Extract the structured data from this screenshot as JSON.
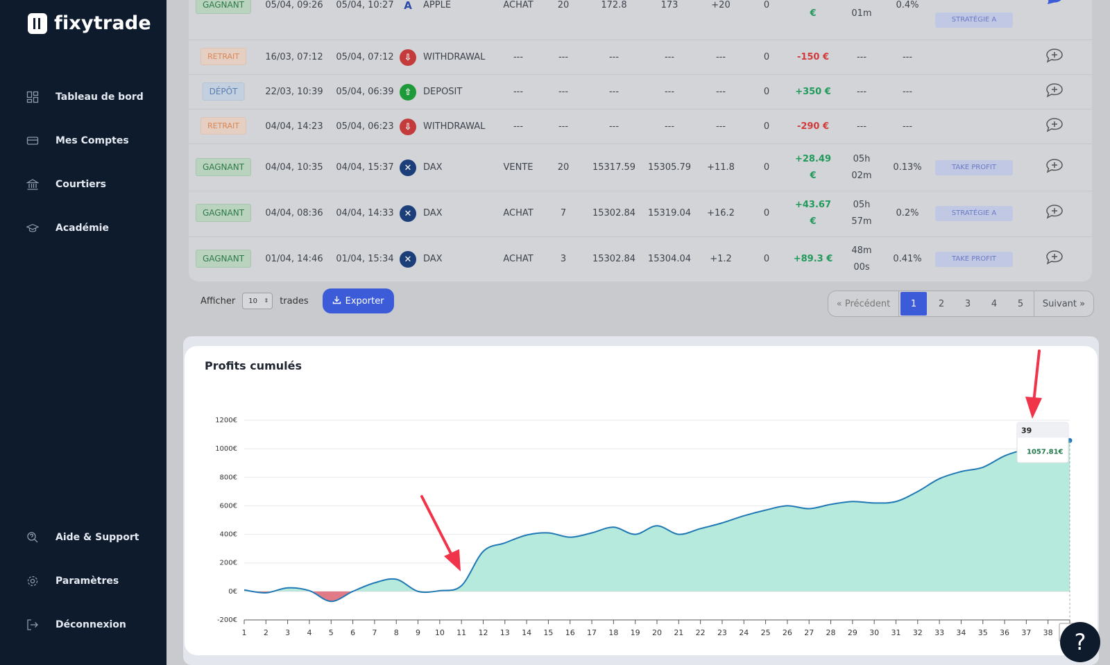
{
  "app": {
    "name": "fixytrade"
  },
  "sidebar": {
    "items": [
      {
        "label": "Tableau de bord",
        "icon": "dashboard-icon"
      },
      {
        "label": "Mes Comptes",
        "icon": "card-icon"
      },
      {
        "label": "Courtiers",
        "icon": "bank-icon"
      },
      {
        "label": "Académie",
        "icon": "graduation-cap-icon"
      }
    ],
    "bottom_items": [
      {
        "label": "Aide & Support",
        "icon": "support-icon"
      },
      {
        "label": "Paramètres",
        "icon": "gear-icon"
      },
      {
        "label": "Déconnexion",
        "icon": "logout-icon"
      }
    ]
  },
  "trades": {
    "rows": [
      {
        "status": "GAGNANT",
        "kind": "win",
        "open": "05/04, 09:26",
        "close": "05/04, 10:27",
        "symbol": "APPLE",
        "symbol_icon": "apple-letter-icon",
        "side": "ACHAT",
        "qty": "20",
        "entry": "172.8",
        "exit": "173",
        "points": "+20",
        "fees": "0",
        "pnl": "",
        "pnl2": "€",
        "pnl_color": "green",
        "dur1": "",
        "dur2": "01m",
        "pct": "0.4%",
        "strategy": "STRATÉGIE A"
      },
      {
        "status": "RETRAIT",
        "kind": "withdrawal",
        "open": "16/03, 07:12",
        "close": "05/04, 07:12",
        "symbol": "WITHDRAWAL",
        "symbol_icon": "withdrawal-icon",
        "side": "---",
        "qty": "---",
        "entry": "---",
        "exit": "---",
        "points": "---",
        "fees": "0",
        "pnl": "-150 €",
        "pnl_color": "red",
        "dur1": "---",
        "pct": "---",
        "strategy": ""
      },
      {
        "status": "DÉPÔT",
        "kind": "deposit",
        "open": "22/03, 10:39",
        "close": "05/04, 06:39",
        "symbol": "DEPOSIT",
        "symbol_icon": "deposit-icon",
        "side": "---",
        "qty": "---",
        "entry": "---",
        "exit": "---",
        "points": "---",
        "fees": "0",
        "pnl": "+350 €",
        "pnl_color": "green",
        "dur1": "---",
        "pct": "---",
        "strategy": ""
      },
      {
        "status": "RETRAIT",
        "kind": "withdrawal",
        "open": "04/04, 14:23",
        "close": "05/04, 06:23",
        "symbol": "WITHDRAWAL",
        "symbol_icon": "withdrawal-icon",
        "side": "---",
        "qty": "---",
        "entry": "---",
        "exit": "---",
        "points": "---",
        "fees": "0",
        "pnl": "-290 €",
        "pnl_color": "red",
        "dur1": "---",
        "pct": "---",
        "strategy": ""
      },
      {
        "status": "GAGNANT",
        "kind": "win",
        "open": "04/04, 10:35",
        "close": "04/04, 15:37",
        "symbol": "DAX",
        "symbol_icon": "dax-icon",
        "side": "VENTE",
        "qty": "20",
        "entry": "15317.59",
        "exit": "15305.79",
        "points": "+11.8",
        "fees": "0",
        "pnl": "+28.49",
        "pnl2": "€",
        "pnl_color": "green",
        "dur1": "05h",
        "dur2": "02m",
        "pct": "0.13%",
        "strategy": "TAKE PROFIT"
      },
      {
        "status": "GAGNANT",
        "kind": "win",
        "open": "04/04, 08:36",
        "close": "04/04, 14:33",
        "symbol": "DAX",
        "symbol_icon": "dax-icon",
        "side": "ACHAT",
        "qty": "7",
        "entry": "15302.84",
        "exit": "15319.04",
        "points": "+16.2",
        "fees": "0",
        "pnl": "+43.67",
        "pnl2": "€",
        "pnl_color": "green",
        "dur1": "05h",
        "dur2": "57m",
        "pct": "0.2%",
        "strategy": "STRATÉGIE A"
      },
      {
        "status": "GAGNANT",
        "kind": "win",
        "open": "01/04, 14:46",
        "close": "01/04, 15:34",
        "symbol": "DAX",
        "symbol_icon": "dax-icon",
        "side": "ACHAT",
        "qty": "3",
        "entry": "15302.84",
        "exit": "15304.04",
        "points": "+1.2",
        "fees": "0",
        "pnl": "+89.3 €",
        "pnl_color": "green",
        "dur1": "48m",
        "dur2": "00s",
        "pct": "0.41%",
        "strategy": "TAKE PROFIT"
      }
    ]
  },
  "controls": {
    "show_label": "Afficher",
    "page_size": "10",
    "trades_label": "trades",
    "export_label": "Exporter"
  },
  "pagination": {
    "prev": "« Précédent",
    "pages": [
      "1",
      "2",
      "3",
      "4",
      "5"
    ],
    "active": "1",
    "next": "Suivant »"
  },
  "chart": {
    "title": "Profits cumulés",
    "tooltip_label": "39",
    "tooltip_value": "1057.81€"
  },
  "help": {
    "label": "?"
  },
  "colors": {
    "sidebar": "#0e1b2c",
    "accent": "#3b5bd8",
    "line": "#1f78b4",
    "area_positive": "#b5eadc",
    "area_negative": "#e07a86",
    "tooltip_value": "#1f7a4a",
    "arrow": "#f0344a"
  },
  "chart_data": {
    "type": "area",
    "title": "Profits cumulés",
    "x": [
      1,
      2,
      3,
      4,
      5,
      6,
      7,
      8,
      9,
      10,
      11,
      12,
      13,
      14,
      15,
      16,
      17,
      18,
      19,
      20,
      21,
      22,
      23,
      24,
      25,
      26,
      27,
      28,
      29,
      30,
      31,
      32,
      33,
      34,
      35,
      36,
      37,
      38,
      39
    ],
    "y": [
      10,
      -10,
      25,
      5,
      -70,
      0,
      60,
      85,
      0,
      5,
      40,
      280,
      340,
      395,
      410,
      380,
      410,
      450,
      400,
      460,
      400,
      440,
      480,
      530,
      570,
      600,
      580,
      610,
      630,
      620,
      630,
      700,
      790,
      840,
      870,
      950,
      1000,
      1050,
      1057.81
    ],
    "y_tick_labels": [
      "-200€",
      "0€",
      "200€",
      "400€",
      "600€",
      "800€",
      "1000€",
      "1200€"
    ],
    "y_ticks": [
      -200,
      0,
      200,
      400,
      600,
      800,
      1000,
      1200
    ],
    "ylim": [
      -200,
      1200
    ],
    "xlim": [
      1,
      39
    ],
    "grid": true,
    "legend": "none"
  }
}
